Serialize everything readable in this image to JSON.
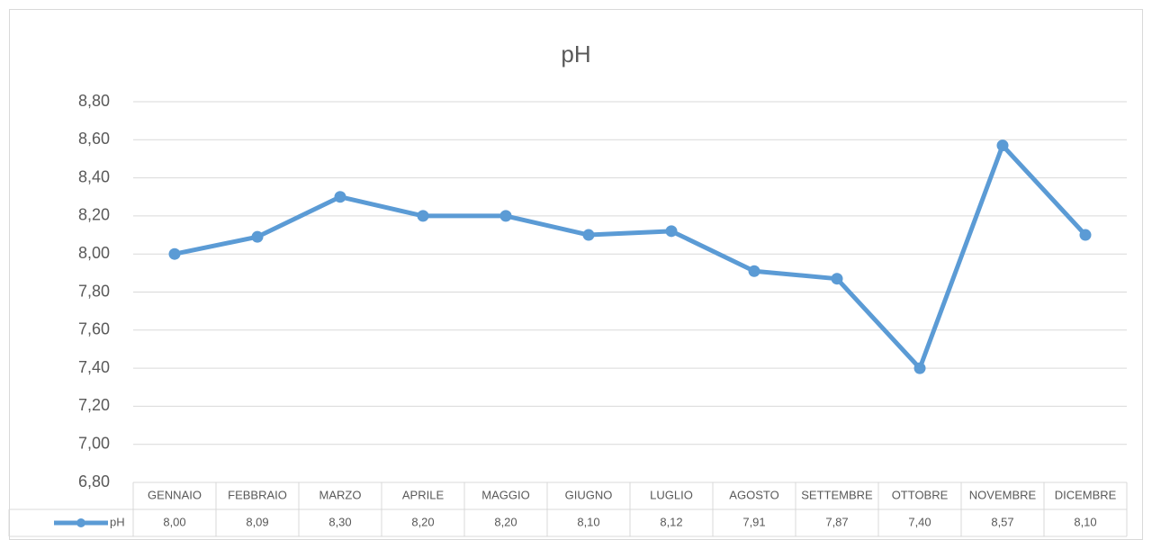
{
  "chart_data": {
    "type": "line",
    "title": "pH",
    "categories": [
      "GENNAIO",
      "FEBBRAIO",
      "MARZO",
      "APRILE",
      "MAGGIO",
      "GIUGNO",
      "LUGLIO",
      "AGOSTO",
      "SETTEMBRE",
      "OTTOBRE",
      "NOVEMBRE",
      "DICEMBRE"
    ],
    "series": [
      {
        "name": "pH",
        "color": "#5b9bd5",
        "values": [
          8.0,
          8.09,
          8.3,
          8.2,
          8.2,
          8.1,
          8.12,
          7.91,
          7.87,
          7.4,
          8.57,
          8.1
        ],
        "value_labels": [
          "8,00",
          "8,09",
          "8,30",
          "8,20",
          "8,20",
          "8,10",
          "8,12",
          "7,91",
          "7,87",
          "7,40",
          "8,57",
          "8,10"
        ]
      }
    ],
    "ylim": [
      6.8,
      8.8
    ],
    "yticks": [
      {
        "value": 6.8,
        "label": "6,80"
      },
      {
        "value": 7.0,
        "label": "7,00"
      },
      {
        "value": 7.2,
        "label": "7,20"
      },
      {
        "value": 7.4,
        "label": "7,40"
      },
      {
        "value": 7.6,
        "label": "7,60"
      },
      {
        "value": 7.8,
        "label": "7,80"
      },
      {
        "value": 8.0,
        "label": "8,00"
      },
      {
        "value": 8.2,
        "label": "8,20"
      },
      {
        "value": 8.4,
        "label": "8,40"
      },
      {
        "value": 8.6,
        "label": "8,60"
      },
      {
        "value": 8.8,
        "label": "8,80"
      }
    ],
    "grid": true,
    "data_table": true
  }
}
